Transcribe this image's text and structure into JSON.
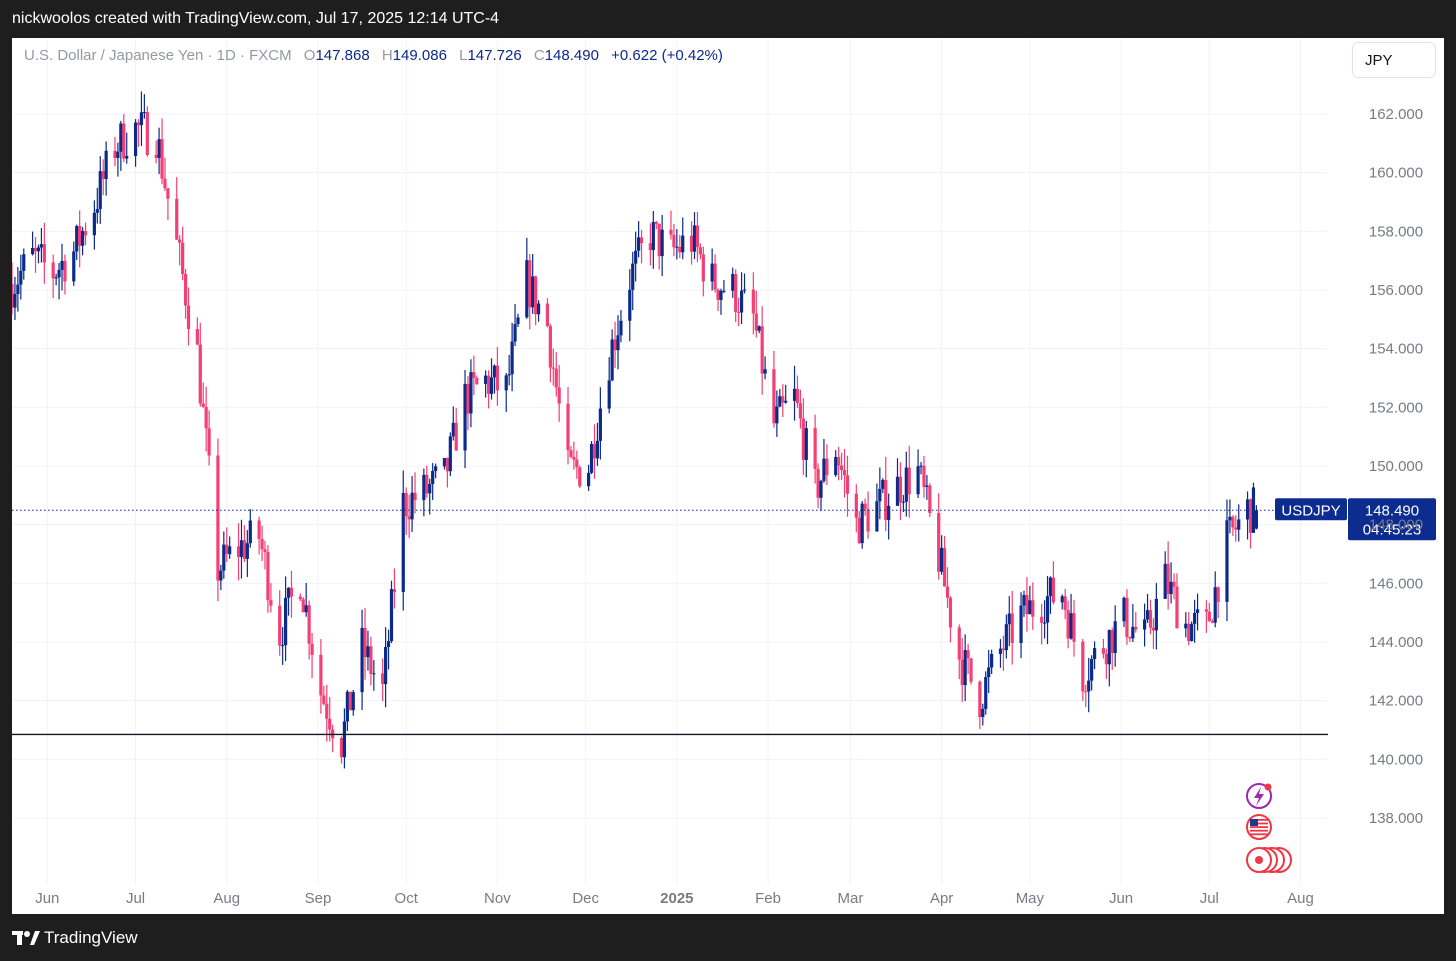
{
  "header": {
    "caption": "nickwoolos created with TradingView.com, Jul 17, 2025 12:14 UTC-4"
  },
  "legend": {
    "symbol_line": "U.S. Dollar / Japanese Yen · 1D · FXCM",
    "o_key": "O",
    "o_val": "147.868",
    "h_key": "H",
    "h_val": "149.086",
    "l_key": "L",
    "l_val": "147.726",
    "c_key": "C",
    "c_val": "148.490",
    "change": "+0.622 (+0.42%)"
  },
  "currency": "JPY",
  "price_tag": {
    "symbol": "USDJPY",
    "price": "148.490",
    "countdown": "04:45:23"
  },
  "footer": {
    "brand": "TradingView"
  },
  "colors": {
    "up": "#0b2a8a",
    "down": "#f23f74",
    "grid": "#f0f3fa",
    "axis_text": "#787b86",
    "tag_bg": "#0d2c8f"
  },
  "icons": [
    "lightning-event-icon",
    "us-flag-icon",
    "us-calendar-events-icon"
  ],
  "chart_data": {
    "type": "candlestick",
    "title": "U.S. Dollar / Japanese Yen · 1D · FXCM",
    "xlabel": "",
    "ylabel": "",
    "ylim": [
      136.0,
      164.0
    ],
    "y_ticks": [
      "138.000",
      "140.000",
      "142.000",
      "144.000",
      "146.000",
      "148.000",
      "150.000",
      "152.000",
      "154.000",
      "156.000",
      "158.000",
      "160.000",
      "162.000"
    ],
    "x_ticks": [
      {
        "label": "Jun",
        "date": "2024-06-01",
        "bold": false
      },
      {
        "label": "Jul",
        "date": "2024-07-01",
        "bold": false
      },
      {
        "label": "Aug",
        "date": "2024-08-01",
        "bold": false
      },
      {
        "label": "Sep",
        "date": "2024-09-01",
        "bold": false
      },
      {
        "label": "Oct",
        "date": "2024-10-01",
        "bold": false
      },
      {
        "label": "Nov",
        "date": "2024-11-01",
        "bold": false
      },
      {
        "label": "Dec",
        "date": "2024-12-01",
        "bold": false
      },
      {
        "label": "2025",
        "date": "2025-01-01",
        "bold": true
      },
      {
        "label": "Feb",
        "date": "2025-02-01",
        "bold": false
      },
      {
        "label": "Mar",
        "date": "2025-03-01",
        "bold": false
      },
      {
        "label": "Apr",
        "date": "2025-04-01",
        "bold": false
      },
      {
        "label": "May",
        "date": "2025-05-01",
        "bold": false
      },
      {
        "label": "Jun",
        "date": "2025-06-01",
        "bold": false
      },
      {
        "label": "Jul",
        "date": "2025-07-01",
        "bold": false
      },
      {
        "label": "Aug",
        "date": "2025-08-01",
        "bold": false
      }
    ],
    "date_range": [
      "2024-05-20",
      "2025-08-10"
    ],
    "last_price": 148.49,
    "support_level": 140.85,
    "closes": [
      [
        "2024-05-20",
        156.2
      ],
      [
        "2024-05-27",
        157.1
      ],
      [
        "2024-06-03",
        156.6
      ],
      [
        "2024-06-10",
        157.3
      ],
      [
        "2024-06-17",
        158.9
      ],
      [
        "2024-06-24",
        160.9
      ],
      [
        "2024-07-01",
        161.5
      ],
      [
        "2024-07-08",
        161.3
      ],
      [
        "2024-07-15",
        157.5
      ],
      [
        "2024-07-22",
        153.8
      ],
      [
        "2024-07-29",
        146.5
      ],
      [
        "2024-08-05",
        147.2
      ],
      [
        "2024-08-12",
        147.6
      ],
      [
        "2024-08-19",
        144.3
      ],
      [
        "2024-08-26",
        146.2
      ],
      [
        "2024-09-02",
        142.3
      ],
      [
        "2024-09-09",
        140.6
      ],
      [
        "2024-09-16",
        143.8
      ],
      [
        "2024-09-23",
        142.3
      ],
      [
        "2024-09-30",
        148.7
      ],
      [
        "2024-10-07",
        149.1
      ],
      [
        "2024-10-14",
        149.6
      ],
      [
        "2024-10-21",
        152.3
      ],
      [
        "2024-10-28",
        152.9
      ],
      [
        "2024-11-04",
        152.6
      ],
      [
        "2024-11-11",
        156.3
      ],
      [
        "2024-11-18",
        154.8
      ],
      [
        "2024-11-25",
        149.8
      ],
      [
        "2024-12-02",
        150.0
      ],
      [
        "2024-12-09",
        153.7
      ],
      [
        "2024-12-16",
        156.4
      ],
      [
        "2024-12-23",
        157.9
      ],
      [
        "2024-12-30",
        157.3
      ],
      [
        "2025-01-06",
        157.7
      ],
      [
        "2025-01-13",
        156.3
      ],
      [
        "2025-01-20",
        156.0
      ],
      [
        "2025-01-27",
        155.0
      ],
      [
        "2025-02-03",
        151.4
      ],
      [
        "2025-02-10",
        152.3
      ],
      [
        "2025-02-17",
        149.2
      ],
      [
        "2025-02-24",
        150.6
      ],
      [
        "2025-03-03",
        148.0
      ],
      [
        "2025-03-10",
        148.6
      ],
      [
        "2025-03-17",
        149.3
      ],
      [
        "2025-03-24",
        149.8
      ],
      [
        "2025-03-31",
        146.9
      ],
      [
        "2025-04-07",
        143.5
      ],
      [
        "2025-04-14",
        142.1
      ],
      [
        "2025-04-21",
        143.7
      ],
      [
        "2025-04-28",
        144.9
      ],
      [
        "2025-05-05",
        145.4
      ],
      [
        "2025-05-12",
        145.7
      ],
      [
        "2025-05-19",
        142.9
      ],
      [
        "2025-05-26",
        143.9
      ],
      [
        "2025-06-02",
        144.8
      ],
      [
        "2025-06-09",
        144.1
      ],
      [
        "2025-06-16",
        146.1
      ],
      [
        "2025-06-23",
        144.6
      ],
      [
        "2025-06-30",
        144.5
      ],
      [
        "2025-07-07",
        147.4
      ],
      [
        "2025-07-14",
        148.5
      ]
    ]
  }
}
